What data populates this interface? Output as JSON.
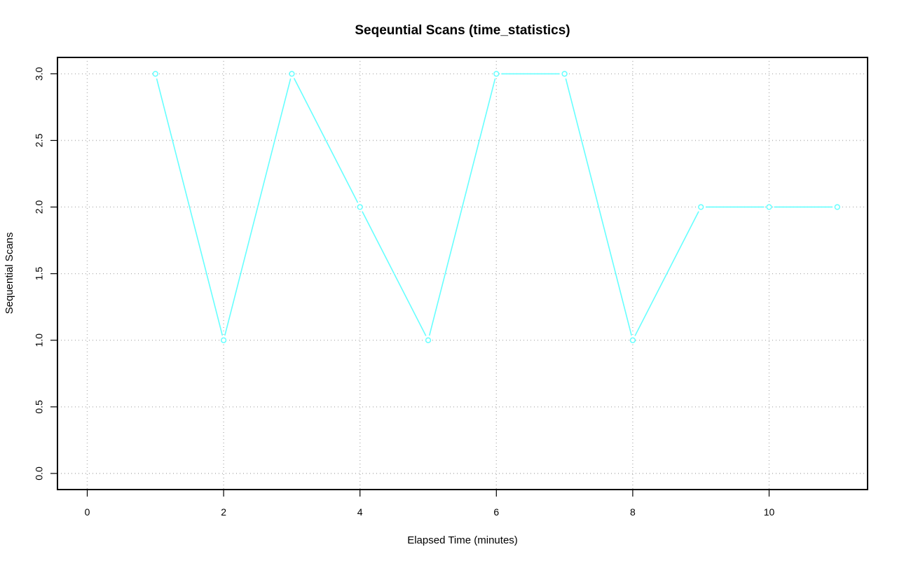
{
  "chart_data": {
    "type": "line",
    "title": "Seqeuntial Scans (time_statistics)",
    "xlabel": "Elapsed Time (minutes)",
    "ylabel": "Sequential Scans",
    "xlim": [
      0,
      11
    ],
    "ylim": [
      0,
      3
    ],
    "xticks": [
      0,
      2,
      4,
      6,
      8,
      10
    ],
    "xtick_labels": [
      "0",
      "2",
      "4",
      "6",
      "8",
      "10"
    ],
    "yticks": [
      0,
      0.5,
      1,
      1.5,
      2,
      2.5,
      3
    ],
    "ytick_labels": [
      "0.0",
      "0.5",
      "1.0",
      "1.5",
      "2.0",
      "2.5",
      "3.0"
    ],
    "grid": true,
    "series": [
      {
        "color": "#66ffff",
        "marker": "circle",
        "x": [
          1,
          2,
          3,
          4,
          5,
          6,
          7,
          8,
          9,
          10,
          11
        ],
        "y": [
          3,
          1,
          3,
          2,
          1,
          3,
          3,
          1,
          2,
          2,
          2
        ]
      }
    ]
  }
}
